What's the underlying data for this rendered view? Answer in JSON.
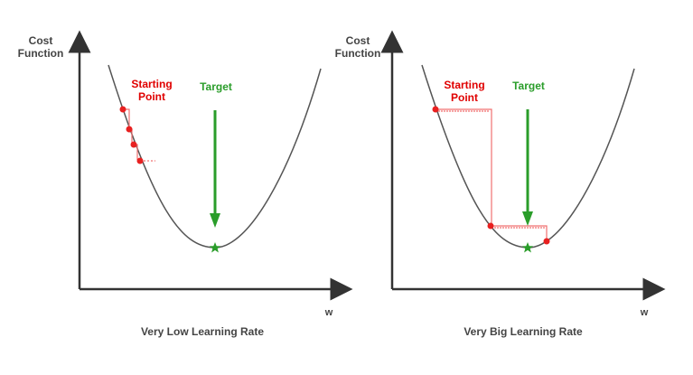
{
  "panels": [
    {
      "y_axis_label_line1": "Cost",
      "y_axis_label_line2": "Function",
      "x_axis_label": "w",
      "start_label_line1": "Starting",
      "start_label_line2": "Point",
      "target_label": "Target",
      "caption": "Very Low Learning Rate"
    },
    {
      "y_axis_label_line1": "Cost",
      "y_axis_label_line2": "Function",
      "x_axis_label": "w",
      "start_label_line1": "Starting",
      "start_label_line2": "Point",
      "target_label": "Target",
      "caption": "Very Big Learning Rate"
    }
  ],
  "colors": {
    "curve": "#555555",
    "axis": "#333333",
    "start_label": "#e00000",
    "target": "#2a9d2a",
    "points": "#e82020",
    "steps": "#f07070",
    "caption": "#444444"
  }
}
